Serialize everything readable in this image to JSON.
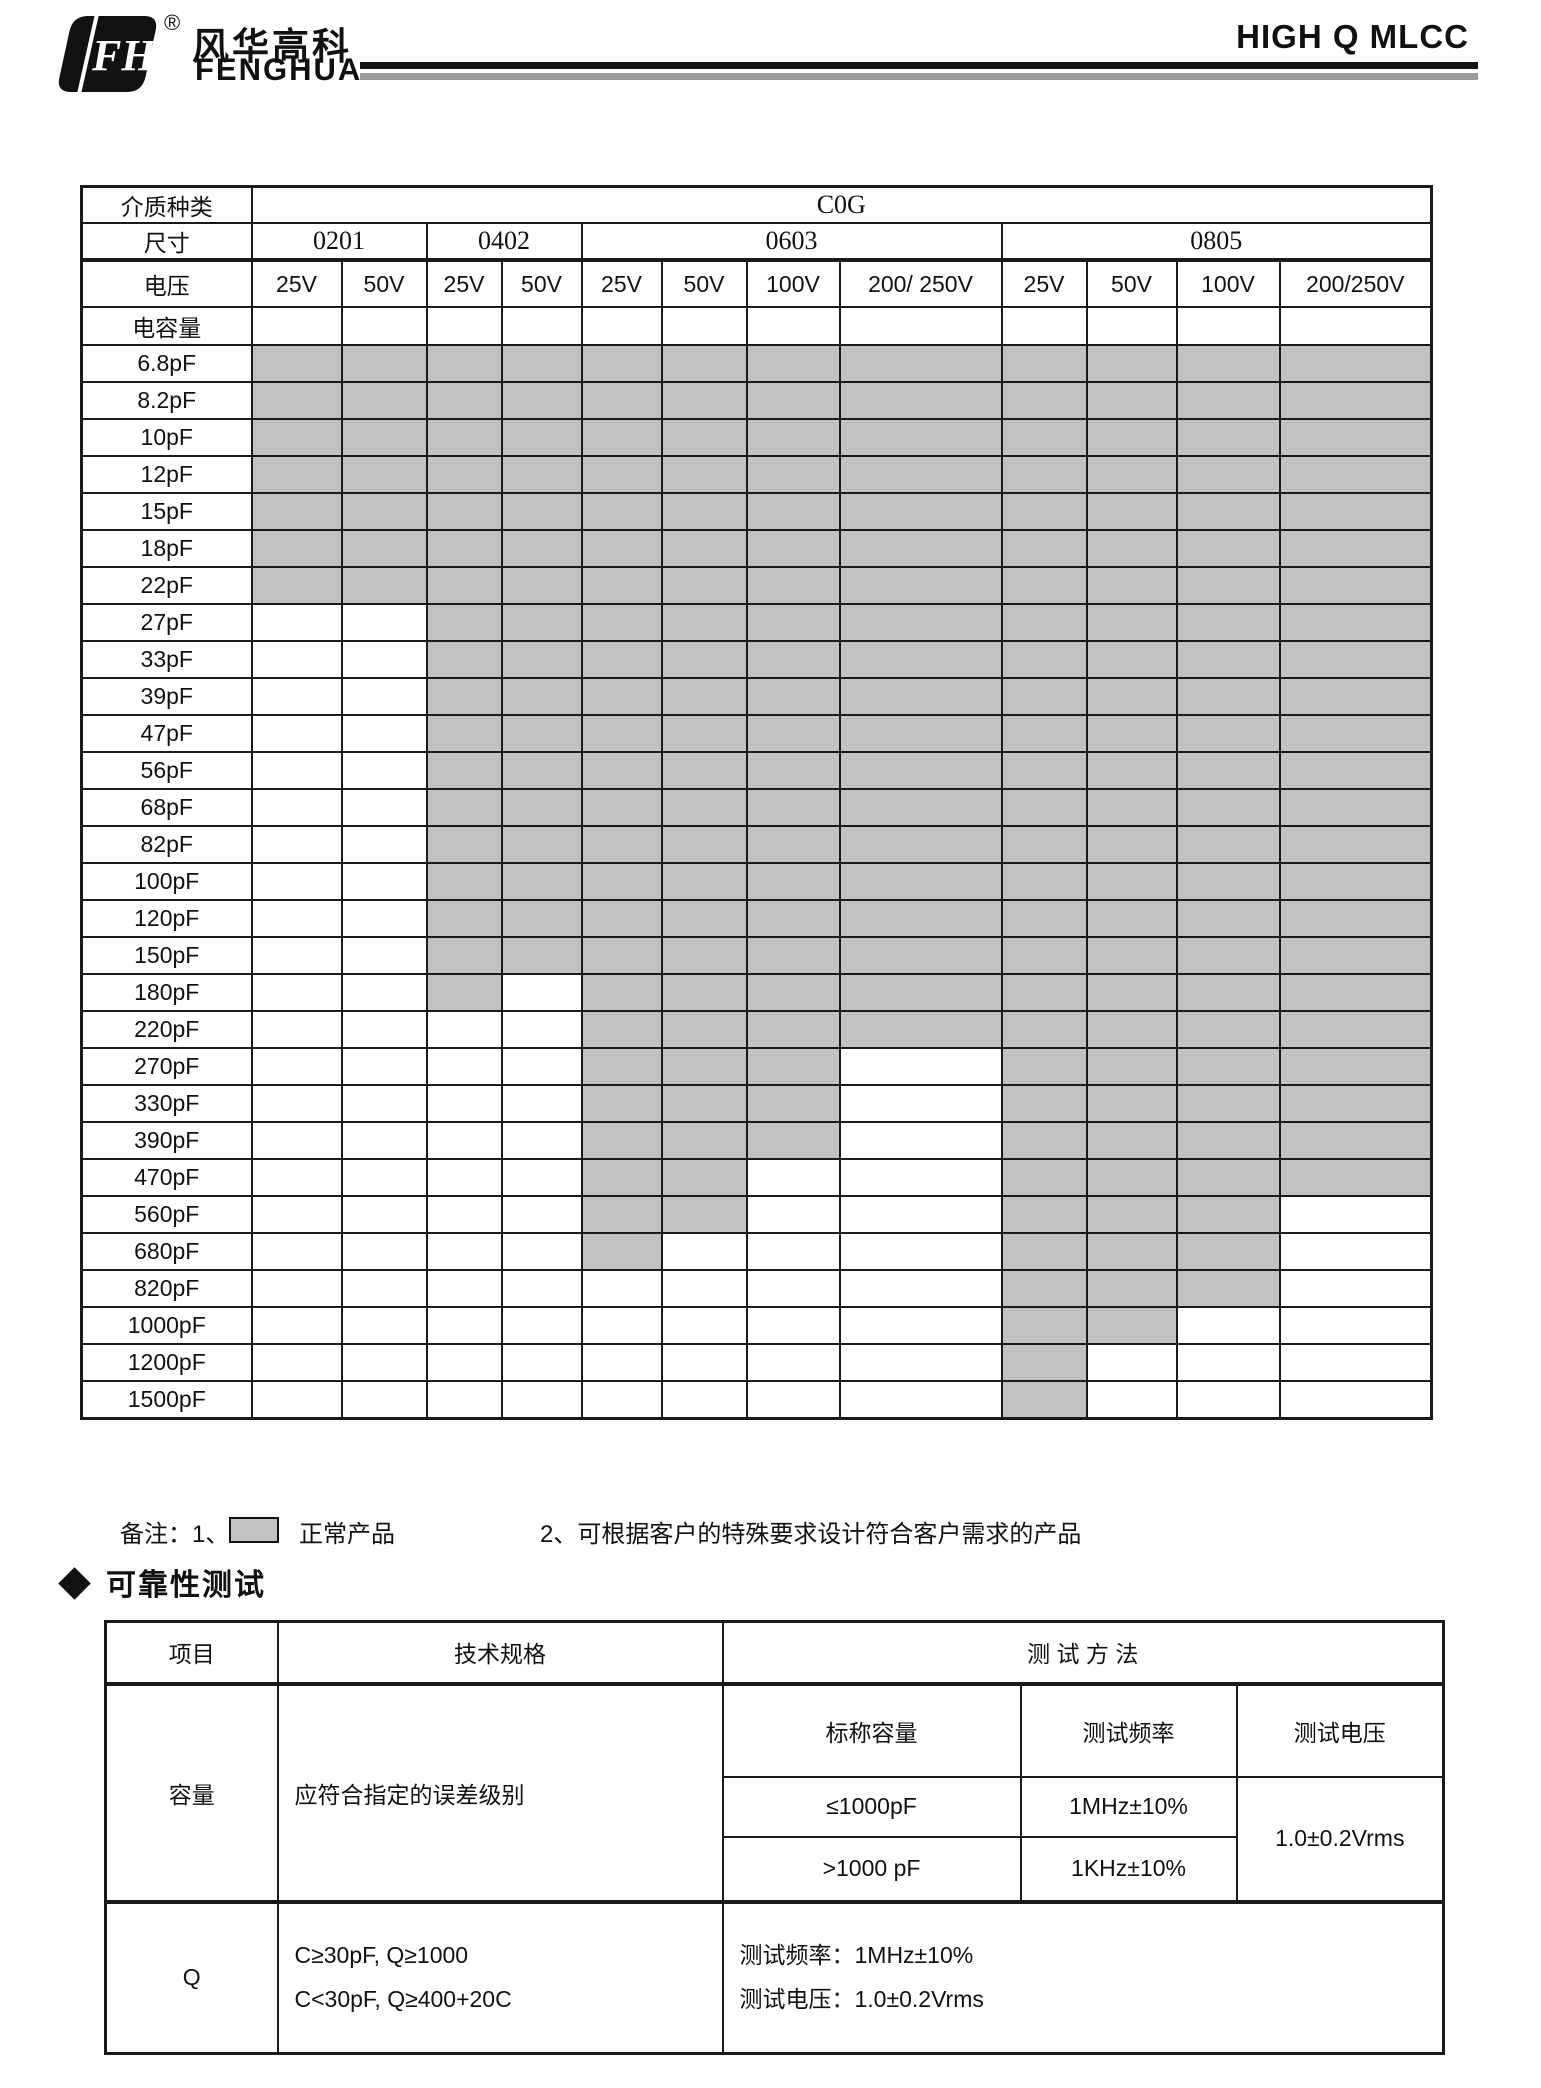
{
  "header": {
    "brand_cn": "风华高科",
    "brand_en": "FENGHUA",
    "registered_mark": "®",
    "page_title": "HIGH Q MLCC"
  },
  "colors": {
    "available_gray": "#c1c1c1",
    "rule_black": "#151515",
    "rule_gray": "#9b9b9b"
  },
  "capacitor_table": {
    "dielectric_label": "介质种类",
    "dielectric_value": "C0G",
    "size_label": "尺寸",
    "sizes": [
      "0201",
      "0402",
      "0603",
      "0805"
    ],
    "voltage_label": "电压",
    "voltages": [
      "25V",
      "50V",
      "25V",
      "50V",
      "25V",
      "50V",
      "100V",
      "200/ 250V",
      "25V",
      "50V",
      "100V",
      "200/250V"
    ],
    "capacitance_label": "电容量",
    "rows": [
      {
        "label": "6.8pF",
        "available": [
          1,
          1,
          1,
          1,
          1,
          1,
          1,
          1,
          1,
          1,
          1,
          1
        ]
      },
      {
        "label": "8.2pF",
        "available": [
          1,
          1,
          1,
          1,
          1,
          1,
          1,
          1,
          1,
          1,
          1,
          1
        ]
      },
      {
        "label": "10pF",
        "available": [
          1,
          1,
          1,
          1,
          1,
          1,
          1,
          1,
          1,
          1,
          1,
          1
        ]
      },
      {
        "label": "12pF",
        "available": [
          1,
          1,
          1,
          1,
          1,
          1,
          1,
          1,
          1,
          1,
          1,
          1
        ]
      },
      {
        "label": "15pF",
        "available": [
          1,
          1,
          1,
          1,
          1,
          1,
          1,
          1,
          1,
          1,
          1,
          1
        ]
      },
      {
        "label": "18pF",
        "available": [
          1,
          1,
          1,
          1,
          1,
          1,
          1,
          1,
          1,
          1,
          1,
          1
        ]
      },
      {
        "label": "22pF",
        "available": [
          1,
          1,
          1,
          1,
          1,
          1,
          1,
          1,
          1,
          1,
          1,
          1
        ]
      },
      {
        "label": "27pF",
        "available": [
          0,
          0,
          1,
          1,
          1,
          1,
          1,
          1,
          1,
          1,
          1,
          1
        ]
      },
      {
        "label": "33pF",
        "available": [
          0,
          0,
          1,
          1,
          1,
          1,
          1,
          1,
          1,
          1,
          1,
          1
        ]
      },
      {
        "label": "39pF",
        "available": [
          0,
          0,
          1,
          1,
          1,
          1,
          1,
          1,
          1,
          1,
          1,
          1
        ]
      },
      {
        "label": "47pF",
        "available": [
          0,
          0,
          1,
          1,
          1,
          1,
          1,
          1,
          1,
          1,
          1,
          1
        ]
      },
      {
        "label": "56pF",
        "available": [
          0,
          0,
          1,
          1,
          1,
          1,
          1,
          1,
          1,
          1,
          1,
          1
        ]
      },
      {
        "label": "68pF",
        "available": [
          0,
          0,
          1,
          1,
          1,
          1,
          1,
          1,
          1,
          1,
          1,
          1
        ]
      },
      {
        "label": "82pF",
        "available": [
          0,
          0,
          1,
          1,
          1,
          1,
          1,
          1,
          1,
          1,
          1,
          1
        ]
      },
      {
        "label": "100pF",
        "available": [
          0,
          0,
          1,
          1,
          1,
          1,
          1,
          1,
          1,
          1,
          1,
          1
        ]
      },
      {
        "label": "120pF",
        "available": [
          0,
          0,
          1,
          1,
          1,
          1,
          1,
          1,
          1,
          1,
          1,
          1
        ]
      },
      {
        "label": "150pF",
        "available": [
          0,
          0,
          1,
          1,
          1,
          1,
          1,
          1,
          1,
          1,
          1,
          1
        ]
      },
      {
        "label": "180pF",
        "available": [
          0,
          0,
          1,
          0,
          1,
          1,
          1,
          1,
          1,
          1,
          1,
          1
        ]
      },
      {
        "label": "220pF",
        "available": [
          0,
          0,
          0,
          0,
          1,
          1,
          1,
          1,
          1,
          1,
          1,
          1
        ]
      },
      {
        "label": "270pF",
        "available": [
          0,
          0,
          0,
          0,
          1,
          1,
          1,
          0,
          1,
          1,
          1,
          1
        ]
      },
      {
        "label": "330pF",
        "available": [
          0,
          0,
          0,
          0,
          1,
          1,
          1,
          0,
          1,
          1,
          1,
          1
        ]
      },
      {
        "label": "390pF",
        "available": [
          0,
          0,
          0,
          0,
          1,
          1,
          1,
          0,
          1,
          1,
          1,
          1
        ]
      },
      {
        "label": "470pF",
        "available": [
          0,
          0,
          0,
          0,
          1,
          1,
          0,
          0,
          1,
          1,
          1,
          1
        ]
      },
      {
        "label": "560pF",
        "available": [
          0,
          0,
          0,
          0,
          1,
          1,
          0,
          0,
          1,
          1,
          1,
          0
        ]
      },
      {
        "label": "680pF",
        "available": [
          0,
          0,
          0,
          0,
          1,
          0,
          0,
          0,
          1,
          1,
          1,
          0
        ]
      },
      {
        "label": "820pF",
        "available": [
          0,
          0,
          0,
          0,
          0,
          0,
          0,
          0,
          1,
          1,
          1,
          0
        ]
      },
      {
        "label": "1000pF",
        "available": [
          0,
          0,
          0,
          0,
          0,
          0,
          0,
          0,
          1,
          1,
          0,
          0
        ]
      },
      {
        "label": "1200pF",
        "available": [
          0,
          0,
          0,
          0,
          0,
          0,
          0,
          0,
          1,
          0,
          0,
          0
        ]
      },
      {
        "label": "1500pF",
        "available": [
          0,
          0,
          0,
          0,
          0,
          0,
          0,
          0,
          1,
          0,
          0,
          0
        ]
      }
    ]
  },
  "notes": {
    "prefix": "备注：1、",
    "normal_product_label": "正常产品",
    "note2": "2、可根据客户的特殊要求设计符合客户需求的产品"
  },
  "reliability_section": {
    "title": "可靠性测试",
    "table": {
      "col_item": "项目",
      "col_spec": "技术规格",
      "col_method": "测 试 方 法",
      "capacity_row": {
        "item": "容量",
        "spec": "应符合指定的误差级别",
        "sub_headers": [
          "标称容量",
          "测试频率",
          "测试电压"
        ],
        "sub_rows": [
          {
            "capacity": "≤1000pF",
            "frequency": "1MHz±10%"
          },
          {
            "capacity": ">1000 pF",
            "frequency": "1KHz±10%"
          }
        ],
        "test_voltage": "1.0±0.2Vrms"
      },
      "q_row": {
        "item": "Q",
        "spec_lines": [
          "C≥30pF, Q≥1000",
          "C<30pF, Q≥400+20C"
        ],
        "method_lines": [
          "测试频率：1MHz±10%",
          "测试电压：1.0±0.2Vrms"
        ]
      }
    }
  }
}
